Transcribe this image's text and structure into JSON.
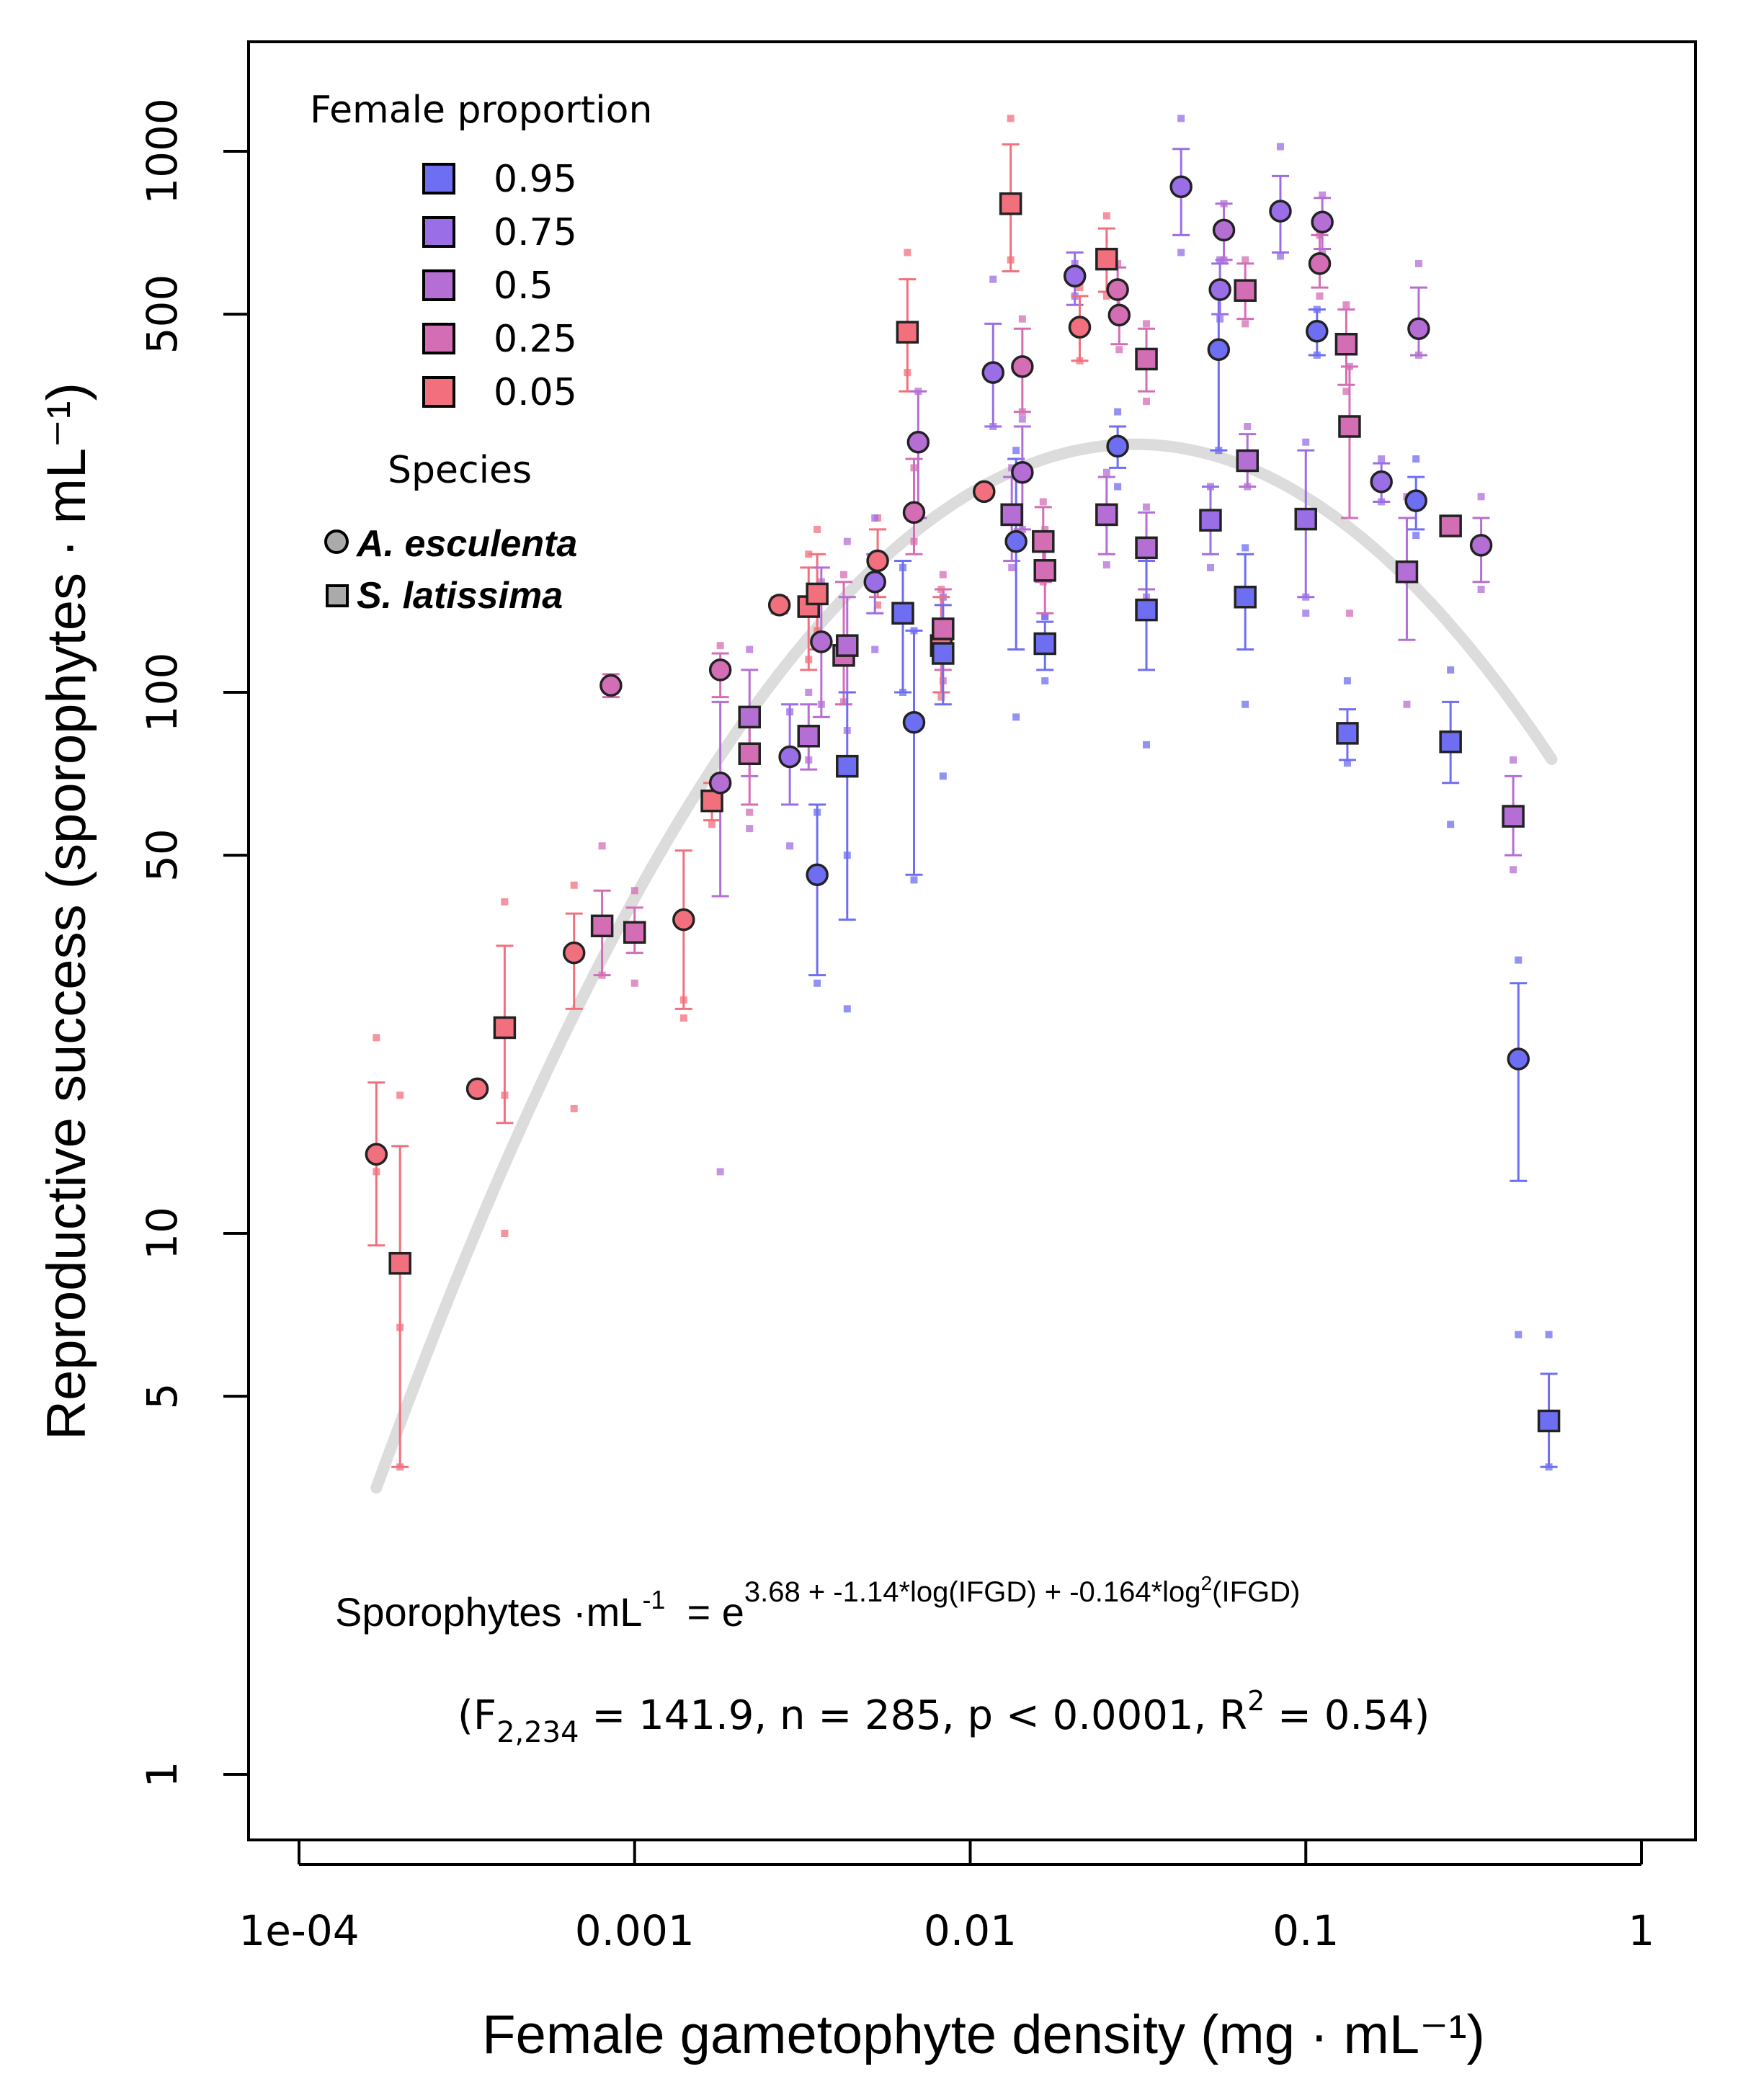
{
  "chart_data": {
    "type": "scatter",
    "xlabel": "Female gametophyte density (mg · mL⁻¹)",
    "ylabel": "Reproductive success (sporophytes · mL⁻¹)",
    "x_scale": "log",
    "y_scale": "log",
    "xlim": [
      0.0001,
      1
    ],
    "ylim": [
      1,
      1000
    ],
    "x_ticks": [
      {
        "value": 0.0001,
        "label": "1e-04"
      },
      {
        "value": 0.001,
        "label": "0.001"
      },
      {
        "value": 0.01,
        "label": "0.01"
      },
      {
        "value": 0.1,
        "label": "0.1"
      },
      {
        "value": 1,
        "label": "1"
      }
    ],
    "y_ticks": [
      {
        "value": 1,
        "label": "1"
      },
      {
        "value": 5,
        "label": "5"
      },
      {
        "value": 10,
        "label": "10"
      },
      {
        "value": 50,
        "label": "50"
      },
      {
        "value": 100,
        "label": "100"
      },
      {
        "value": 500,
        "label": "500"
      },
      {
        "value": 1000,
        "label": "1000"
      }
    ],
    "legend": {
      "title": "Female proportion",
      "entries": [
        {
          "label": "0.95",
          "color": "#6e6ef2"
        },
        {
          "label": "0.75",
          "color": "#9a6ee6"
        },
        {
          "label": "0.5",
          "color": "#b46ed4"
        },
        {
          "label": "0.25",
          "color": "#d46eb4"
        },
        {
          "label": "0.05",
          "color": "#f2707e"
        }
      ],
      "species_title": "Species",
      "species": [
        {
          "label": "A. esculenta",
          "shape": "circle"
        },
        {
          "label": "S. latissima",
          "shape": "square"
        }
      ],
      "position": "top-left"
    },
    "fit": {
      "type": "quadratic-log",
      "intercept": 3.68,
      "b1": -1.14,
      "b2": -0.164,
      "x_range": [
        0.00017,
        0.54
      ],
      "color": "#dcdcdc"
    },
    "annotation": {
      "equation_lhs": "Sporophytes ·mL",
      "equation_lhs_sup": "-1",
      "equation_eq": "= e",
      "equation_exponent": "3.68 + -1.14*log(IFGD) + -0.164*log",
      "equation_exponent_sup": "2",
      "equation_exponent_end": "(IFGD)",
      "stats_a": "(F",
      "stats_sub": "2,234",
      "stats_b": " = 141.9, n = 285, p < 0.0001, R",
      "stats_sup": "2",
      "stats_c": " = 0.54)"
    },
    "points": [
      {
        "x": 0.00017,
        "y": 14,
        "lo": 9.5,
        "hi": 19,
        "shape": "circle",
        "fp": "0.05",
        "reps": [
          13,
          23
        ]
      },
      {
        "x": 0.0002,
        "y": 8.8,
        "lo": 3.7,
        "hi": 14.5,
        "shape": "square",
        "fp": "0.05",
        "reps": [
          3.7,
          18,
          6.7
        ]
      },
      {
        "x": 0.00034,
        "y": 18.5,
        "lo": 18.5,
        "hi": 18.5,
        "shape": "circle",
        "fp": "0.05",
        "reps": []
      },
      {
        "x": 0.00041,
        "y": 24,
        "lo": 16,
        "hi": 34,
        "shape": "square",
        "fp": "0.05",
        "reps": [
          10,
          41,
          18
        ]
      },
      {
        "x": 0.00066,
        "y": 33,
        "lo": 26,
        "hi": 39,
        "shape": "circle",
        "fp": "0.05",
        "reps": [
          17,
          44
        ]
      },
      {
        "x": 0.0008,
        "y": 37,
        "lo": 30,
        "hi": 43,
        "shape": "square",
        "fp": "0.25",
        "reps": [
          30,
          52
        ]
      },
      {
        "x": 0.00085,
        "y": 103,
        "lo": 98,
        "hi": 108,
        "shape": "circle",
        "fp": "0.25",
        "reps": []
      },
      {
        "x": 0.001,
        "y": 36,
        "lo": 33,
        "hi": 40,
        "shape": "square",
        "fp": "0.25",
        "reps": [
          29,
          43
        ]
      },
      {
        "x": 0.0014,
        "y": 38,
        "lo": 26,
        "hi": 51,
        "shape": "circle",
        "fp": "0.05",
        "reps": [
          27,
          25
        ]
      },
      {
        "x": 0.0017,
        "y": 63,
        "lo": 58,
        "hi": 68,
        "shape": "square",
        "fp": "0.05",
        "reps": [
          64,
          57
        ]
      },
      {
        "x": 0.0018,
        "y": 110,
        "lo": 98,
        "hi": 118,
        "shape": "circle",
        "fp": "0.25",
        "reps": [
          122
        ]
      },
      {
        "x": 0.0018,
        "y": 68,
        "lo": 42,
        "hi": 96,
        "shape": "circle",
        "fp": "0.5",
        "reps": [
          13
        ]
      },
      {
        "x": 0.0022,
        "y": 90,
        "lo": 70,
        "hi": 110,
        "shape": "square",
        "fp": "0.5",
        "reps": [
          56,
          120
        ]
      },
      {
        "x": 0.0022,
        "y": 77,
        "lo": 62,
        "hi": 90,
        "shape": "square",
        "fp": "0.25",
        "reps": [
          60
        ]
      },
      {
        "x": 0.0027,
        "y": 145,
        "lo": 140,
        "hi": 150,
        "shape": "circle",
        "fp": "0.05",
        "reps": []
      },
      {
        "x": 0.0029,
        "y": 76,
        "lo": 62,
        "hi": 95,
        "shape": "circle",
        "fp": "0.75",
        "reps": [
          52,
          92
        ]
      },
      {
        "x": 0.0033,
        "y": 144,
        "lo": 110,
        "hi": 170,
        "shape": "square",
        "fp": "0.05",
        "reps": [
          180,
          115
        ]
      },
      {
        "x": 0.0033,
        "y": 83,
        "lo": 72,
        "hi": 95,
        "shape": "square",
        "fp": "0.5",
        "reps": [
          75,
          100
        ]
      },
      {
        "x": 0.0035,
        "y": 152,
        "lo": 120,
        "hi": 180,
        "shape": "square",
        "fp": "0.05",
        "reps": [
          200,
          130
        ]
      },
      {
        "x": 0.0035,
        "y": 46,
        "lo": 30,
        "hi": 62,
        "shape": "circle",
        "fp": "0.95",
        "reps": [
          29,
          60
        ]
      },
      {
        "x": 0.0036,
        "y": 124,
        "lo": 90,
        "hi": 170,
        "shape": "circle",
        "fp": "0.5",
        "reps": [
          160,
          95
        ]
      },
      {
        "x": 0.0042,
        "y": 117,
        "lo": 95,
        "hi": 160,
        "shape": "square",
        "fp": "0.25",
        "reps": [
          165,
          96
        ]
      },
      {
        "x": 0.0043,
        "y": 122,
        "lo": 100,
        "hi": 150,
        "shape": "square",
        "fp": "0.5",
        "reps": [
          190,
          85
        ]
      },
      {
        "x": 0.0043,
        "y": 73,
        "lo": 38,
        "hi": 100,
        "shape": "square",
        "fp": "0.95",
        "reps": [
          26,
          50
        ]
      },
      {
        "x": 0.0053,
        "y": 175,
        "lo": 150,
        "hi": 200,
        "shape": "circle",
        "fp": "0.05",
        "reps": [
          210,
          145
        ]
      },
      {
        "x": 0.0052,
        "y": 160,
        "lo": 140,
        "hi": 180,
        "shape": "circle",
        "fp": "0.75",
        "reps": [
          210,
          120
        ]
      },
      {
        "x": 0.0063,
        "y": 140,
        "lo": 100,
        "hi": 175,
        "shape": "square",
        "fp": "0.95",
        "reps": [
          100,
          170
        ]
      },
      {
        "x": 0.0065,
        "y": 463,
        "lo": 360,
        "hi": 580,
        "shape": "square",
        "fp": "0.05",
        "reps": [
          650,
          390
        ]
      },
      {
        "x": 0.0068,
        "y": 215,
        "lo": 180,
        "hi": 270,
        "shape": "circle",
        "fp": "0.25",
        "reps": [
          260,
          190
        ]
      },
      {
        "x": 0.007,
        "y": 290,
        "lo": 210,
        "hi": 360,
        "shape": "circle",
        "fp": "0.5",
        "reps": [
          360,
          210
        ]
      },
      {
        "x": 0.0068,
        "y": 88,
        "lo": 46,
        "hi": 130,
        "shape": "circle",
        "fp": "0.95",
        "reps": [
          45,
          130
        ]
      },
      {
        "x": 0.0082,
        "y": 122,
        "lo": 100,
        "hi": 150,
        "shape": "square",
        "fp": "0.05",
        "reps": [
          155,
          98
        ]
      },
      {
        "x": 0.0083,
        "y": 131,
        "lo": 110,
        "hi": 155,
        "shape": "square",
        "fp": "0.25",
        "reps": [
          165,
          105
        ]
      },
      {
        "x": 0.0083,
        "y": 118,
        "lo": 95,
        "hi": 145,
        "shape": "square",
        "fp": "0.95",
        "reps": [
          70,
          150
        ]
      },
      {
        "x": 0.011,
        "y": 235,
        "lo": 230,
        "hi": 240,
        "shape": "circle",
        "fp": "0.05",
        "reps": []
      },
      {
        "x": 0.0117,
        "y": 390,
        "lo": 310,
        "hi": 480,
        "shape": "circle",
        "fp": "0.75",
        "reps": [
          580,
          310
        ]
      },
      {
        "x": 0.0132,
        "y": 800,
        "lo": 600,
        "hi": 1030,
        "shape": "square",
        "fp": "0.05",
        "reps": [
          1150,
          630
        ]
      },
      {
        "x": 0.0133,
        "y": 213,
        "lo": 175,
        "hi": 250,
        "shape": "square",
        "fp": "0.5",
        "reps": [
          260,
          170
        ]
      },
      {
        "x": 0.0137,
        "y": 190,
        "lo": 120,
        "hi": 270,
        "shape": "circle",
        "fp": "0.95",
        "reps": [
          90,
          280
        ]
      },
      {
        "x": 0.0143,
        "y": 400,
        "lo": 330,
        "hi": 470,
        "shape": "circle",
        "fp": "0.25",
        "reps": [
          490,
          330
        ]
      },
      {
        "x": 0.0143,
        "y": 255,
        "lo": 200,
        "hi": 310,
        "shape": "circle",
        "fp": "0.5",
        "reps": [
          320,
          200
        ]
      },
      {
        "x": 0.0165,
        "y": 190,
        "lo": 160,
        "hi": 220,
        "shape": "square",
        "fp": "0.25",
        "reps": [
          225,
          160
        ]
      },
      {
        "x": 0.0167,
        "y": 168,
        "lo": 140,
        "hi": 195,
        "shape": "square",
        "fp": "0.25",
        "reps": [
          200,
          138
        ]
      },
      {
        "x": 0.0167,
        "y": 123,
        "lo": 110,
        "hi": 135,
        "shape": "square",
        "fp": "0.95",
        "reps": [
          105,
          138
        ]
      },
      {
        "x": 0.0205,
        "y": 588,
        "lo": 520,
        "hi": 650,
        "shape": "circle",
        "fp": "0.75",
        "reps": [
          620,
          540
        ]
      },
      {
        "x": 0.0212,
        "y": 473,
        "lo": 410,
        "hi": 540,
        "shape": "circle",
        "fp": "0.05",
        "reps": [
          560,
          410
        ]
      },
      {
        "x": 0.0255,
        "y": 632,
        "lo": 550,
        "hi": 720,
        "shape": "square",
        "fp": "0.05",
        "reps": [
          760,
          540
        ]
      },
      {
        "x": 0.0255,
        "y": 213,
        "lo": 180,
        "hi": 250,
        "shape": "square",
        "fp": "0.5",
        "reps": [
          255,
          172
        ]
      },
      {
        "x": 0.0275,
        "y": 555,
        "lo": 500,
        "hi": 610,
        "shape": "circle",
        "fp": "0.25",
        "reps": [
          620,
          500
        ]
      },
      {
        "x": 0.0278,
        "y": 498,
        "lo": 440,
        "hi": 560,
        "shape": "circle",
        "fp": "0.25",
        "reps": [
          570,
          430
        ]
      },
      {
        "x": 0.0275,
        "y": 285,
        "lo": 260,
        "hi": 310,
        "shape": "circle",
        "fp": "0.95",
        "reps": [
          240,
          330
        ]
      },
      {
        "x": 0.0335,
        "y": 413,
        "lo": 360,
        "hi": 470,
        "shape": "square",
        "fp": "0.25",
        "reps": [
          480,
          345
        ]
      },
      {
        "x": 0.0335,
        "y": 185,
        "lo": 155,
        "hi": 215,
        "shape": "square",
        "fp": "0.5",
        "reps": [
          220,
          150
        ]
      },
      {
        "x": 0.0335,
        "y": 142,
        "lo": 110,
        "hi": 175,
        "shape": "square",
        "fp": "0.95",
        "reps": [
          80,
          180
        ]
      },
      {
        "x": 0.0425,
        "y": 860,
        "lo": 700,
        "hi": 1010,
        "shape": "circle",
        "fp": "0.75",
        "reps": [
          1150,
          650
        ]
      },
      {
        "x": 0.052,
        "y": 208,
        "lo": 180,
        "hi": 240,
        "shape": "square",
        "fp": "0.75",
        "reps": [
          240,
          170
        ]
      },
      {
        "x": 0.055,
        "y": 430,
        "lo": 280,
        "hi": 560,
        "shape": "circle",
        "fp": "0.95",
        "reps": [
          280,
          560
        ]
      },
      {
        "x": 0.0555,
        "y": 555,
        "lo": 500,
        "hi": 620,
        "shape": "circle",
        "fp": "0.75",
        "reps": [
          630,
          490
        ]
      },
      {
        "x": 0.057,
        "y": 715,
        "lo": 630,
        "hi": 800,
        "shape": "circle",
        "fp": "0.5",
        "reps": [
          800,
          630
        ]
      },
      {
        "x": 0.066,
        "y": 553,
        "lo": 490,
        "hi": 620,
        "shape": "square",
        "fp": "0.25",
        "reps": [
          630,
          480
        ]
      },
      {
        "x": 0.067,
        "y": 268,
        "lo": 240,
        "hi": 300,
        "shape": "square",
        "fp": "0.5",
        "reps": [
          310,
          240
        ]
      },
      {
        "x": 0.066,
        "y": 150,
        "lo": 120,
        "hi": 180,
        "shape": "square",
        "fp": "0.95",
        "reps": [
          95,
          185
        ]
      },
      {
        "x": 0.084,
        "y": 775,
        "lo": 650,
        "hi": 900,
        "shape": "circle",
        "fp": "0.75",
        "reps": [
          1020,
          640
        ]
      },
      {
        "x": 0.1,
        "y": 209,
        "lo": 150,
        "hi": 280,
        "shape": "square",
        "fp": "0.75",
        "reps": [
          290,
          150,
          140
        ]
      },
      {
        "x": 0.108,
        "y": 465,
        "lo": 420,
        "hi": 510,
        "shape": "circle",
        "fp": "0.95",
        "reps": [
          510,
          420
        ]
      },
      {
        "x": 0.11,
        "y": 620,
        "lo": 560,
        "hi": 700,
        "shape": "circle",
        "fp": "0.25",
        "reps": [
          700,
          540
        ]
      },
      {
        "x": 0.112,
        "y": 740,
        "lo": 660,
        "hi": 820,
        "shape": "circle",
        "fp": "0.5",
        "reps": [
          830,
          650
        ]
      },
      {
        "x": 0.132,
        "y": 440,
        "lo": 370,
        "hi": 510,
        "shape": "square",
        "fp": "0.25",
        "reps": [
          520,
          360
        ]
      },
      {
        "x": 0.135,
        "y": 310,
        "lo": 210,
        "hi": 400,
        "shape": "square",
        "fp": "0.25",
        "reps": [
          400,
          140
        ]
      },
      {
        "x": 0.133,
        "y": 84,
        "lo": 75,
        "hi": 93,
        "shape": "square",
        "fp": "0.95",
        "reps": [
          74,
          105
        ]
      },
      {
        "x": 0.168,
        "y": 245,
        "lo": 225,
        "hi": 265,
        "shape": "circle",
        "fp": "0.75",
        "reps": [
          270,
          225
        ]
      },
      {
        "x": 0.2,
        "y": 167,
        "lo": 125,
        "hi": 210,
        "shape": "square",
        "fp": "0.5",
        "reps": [
          95,
          230
        ]
      },
      {
        "x": 0.213,
        "y": 226,
        "lo": 200,
        "hi": 250,
        "shape": "circle",
        "fp": "0.95",
        "reps": [
          270,
          195
        ]
      },
      {
        "x": 0.217,
        "y": 470,
        "lo": 420,
        "hi": 560,
        "shape": "circle",
        "fp": "0.5",
        "reps": [
          620,
          420
        ]
      },
      {
        "x": 0.27,
        "y": 203,
        "lo": 198,
        "hi": 208,
        "shape": "square",
        "fp": "0.25",
        "reps": []
      },
      {
        "x": 0.27,
        "y": 81,
        "lo": 68,
        "hi": 96,
        "shape": "square",
        "fp": "0.95",
        "reps": [
          57,
          110
        ]
      },
      {
        "x": 0.333,
        "y": 187,
        "lo": 160,
        "hi": 210,
        "shape": "circle",
        "fp": "0.5",
        "reps": [
          230,
          155
        ]
      },
      {
        "x": 0.415,
        "y": 59,
        "lo": 50,
        "hi": 70,
        "shape": "square",
        "fp": "0.5",
        "reps": [
          75,
          47
        ]
      },
      {
        "x": 0.43,
        "y": 21,
        "lo": 12.5,
        "hi": 29,
        "shape": "circle",
        "fp": "0.95",
        "reps": [
          32,
          6.5
        ]
      },
      {
        "x": 0.53,
        "y": 4.5,
        "lo": 3.7,
        "hi": 5.5,
        "shape": "square",
        "fp": "0.95",
        "reps": [
          3.7,
          6.5
        ]
      }
    ]
  }
}
